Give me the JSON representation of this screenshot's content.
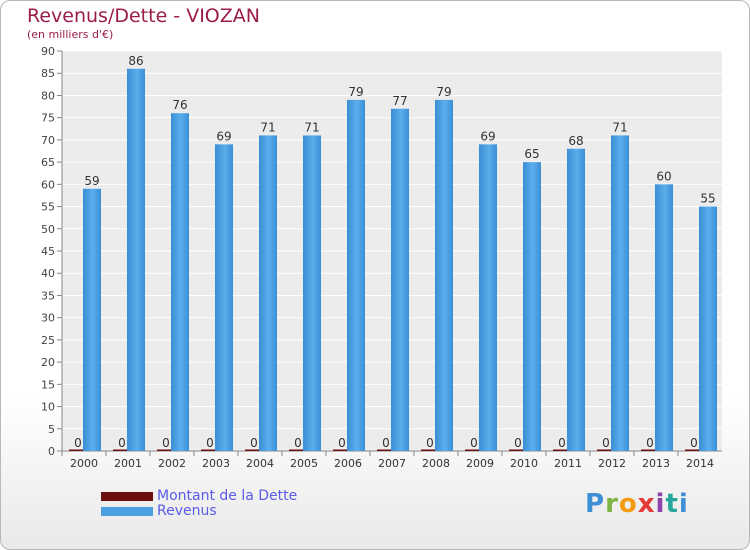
{
  "chart_data": {
    "type": "bar",
    "title": "Revenus/Dette - VIOZAN",
    "subtitle": "(en milliers d'€)",
    "categories": [
      "2000",
      "2001",
      "2002",
      "2003",
      "2004",
      "2005",
      "2006",
      "2007",
      "2008",
      "2009",
      "2010",
      "2011",
      "2012",
      "2013",
      "2014"
    ],
    "series": [
      {
        "name": "Montant de la Dette",
        "color": "#6b0f0f",
        "values": [
          0,
          0,
          0,
          0,
          0,
          0,
          0,
          0,
          0,
          0,
          0,
          0,
          0,
          0,
          0
        ]
      },
      {
        "name": "Revenus",
        "color": "#4a9fe0",
        "values": [
          59,
          86,
          76,
          69,
          71,
          71,
          79,
          77,
          79,
          69,
          65,
          68,
          71,
          60,
          55
        ]
      }
    ],
    "ylim": [
      0,
      90
    ],
    "yticks": [
      0,
      5,
      10,
      15,
      20,
      25,
      30,
      35,
      40,
      45,
      50,
      55,
      60,
      65,
      70,
      75,
      80,
      85,
      90
    ],
    "grid": true,
    "legend_position": "bottom-left"
  },
  "brand": "Proxiti"
}
